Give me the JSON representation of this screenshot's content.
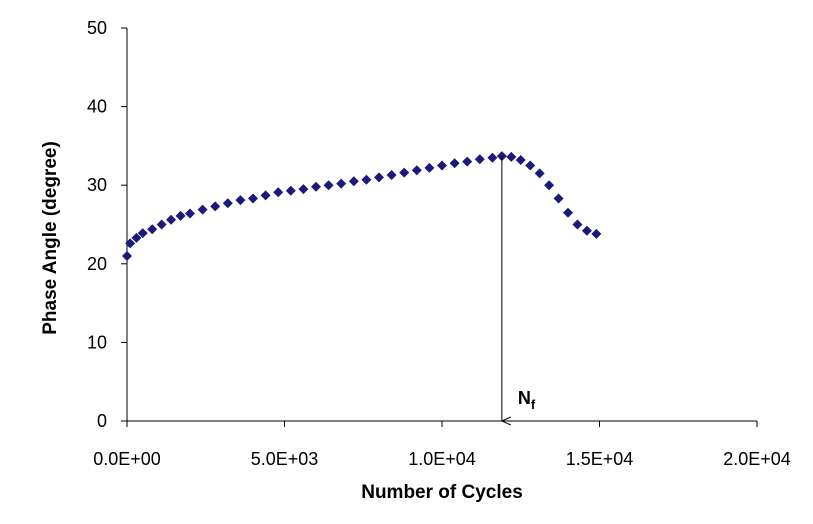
{
  "chart_data": {
    "type": "scatter",
    "x_label": "Number of Cycles",
    "y_label": "Phase Angle (degree)",
    "color": "#1a1a7a",
    "xlim": [
      0,
      20000
    ],
    "ylim": [
      0,
      50
    ],
    "xticks": [
      {
        "value": 0,
        "label": "0.0E+00"
      },
      {
        "value": 5000,
        "label": "5.0E+03"
      },
      {
        "value": 10000,
        "label": "1.0E+04"
      },
      {
        "value": 15000,
        "label": "1.5E+04"
      },
      {
        "value": 20000,
        "label": "2.0E+04"
      }
    ],
    "yticks": [
      0,
      10,
      20,
      30,
      40,
      50
    ],
    "grid": false,
    "x": [
      0,
      100,
      300,
      500,
      800,
      1100,
      1400,
      1700,
      2000,
      2400,
      2800,
      3200,
      3600,
      4000,
      4400,
      4800,
      5200,
      5600,
      6000,
      6400,
      6800,
      7200,
      7600,
      8000,
      8400,
      8800,
      9200,
      9600,
      10000,
      10400,
      10800,
      11200,
      11600,
      11900,
      12200,
      12500,
      12800,
      13100,
      13400,
      13700,
      14000,
      14300,
      14600,
      14900
    ],
    "values": [
      21,
      22.6,
      23.3,
      23.9,
      24.4,
      25,
      25.6,
      26.1,
      26.4,
      26.9,
      27.3,
      27.7,
      28.1,
      28.3,
      28.7,
      29.1,
      29.3,
      29.5,
      29.8,
      30,
      30.2,
      30.5,
      30.7,
      31,
      31.3,
      31.6,
      31.9,
      32.2,
      32.5,
      32.8,
      33,
      33.3,
      33.5,
      33.7,
      33.6,
      33.2,
      32.5,
      31.5,
      30,
      28.3,
      26.5,
      25,
      24.2,
      23.8
    ],
    "annotation": {
      "text": "N",
      "subscript": "f",
      "x": 11900,
      "y_from": 33.7,
      "y_to": 0
    }
  }
}
